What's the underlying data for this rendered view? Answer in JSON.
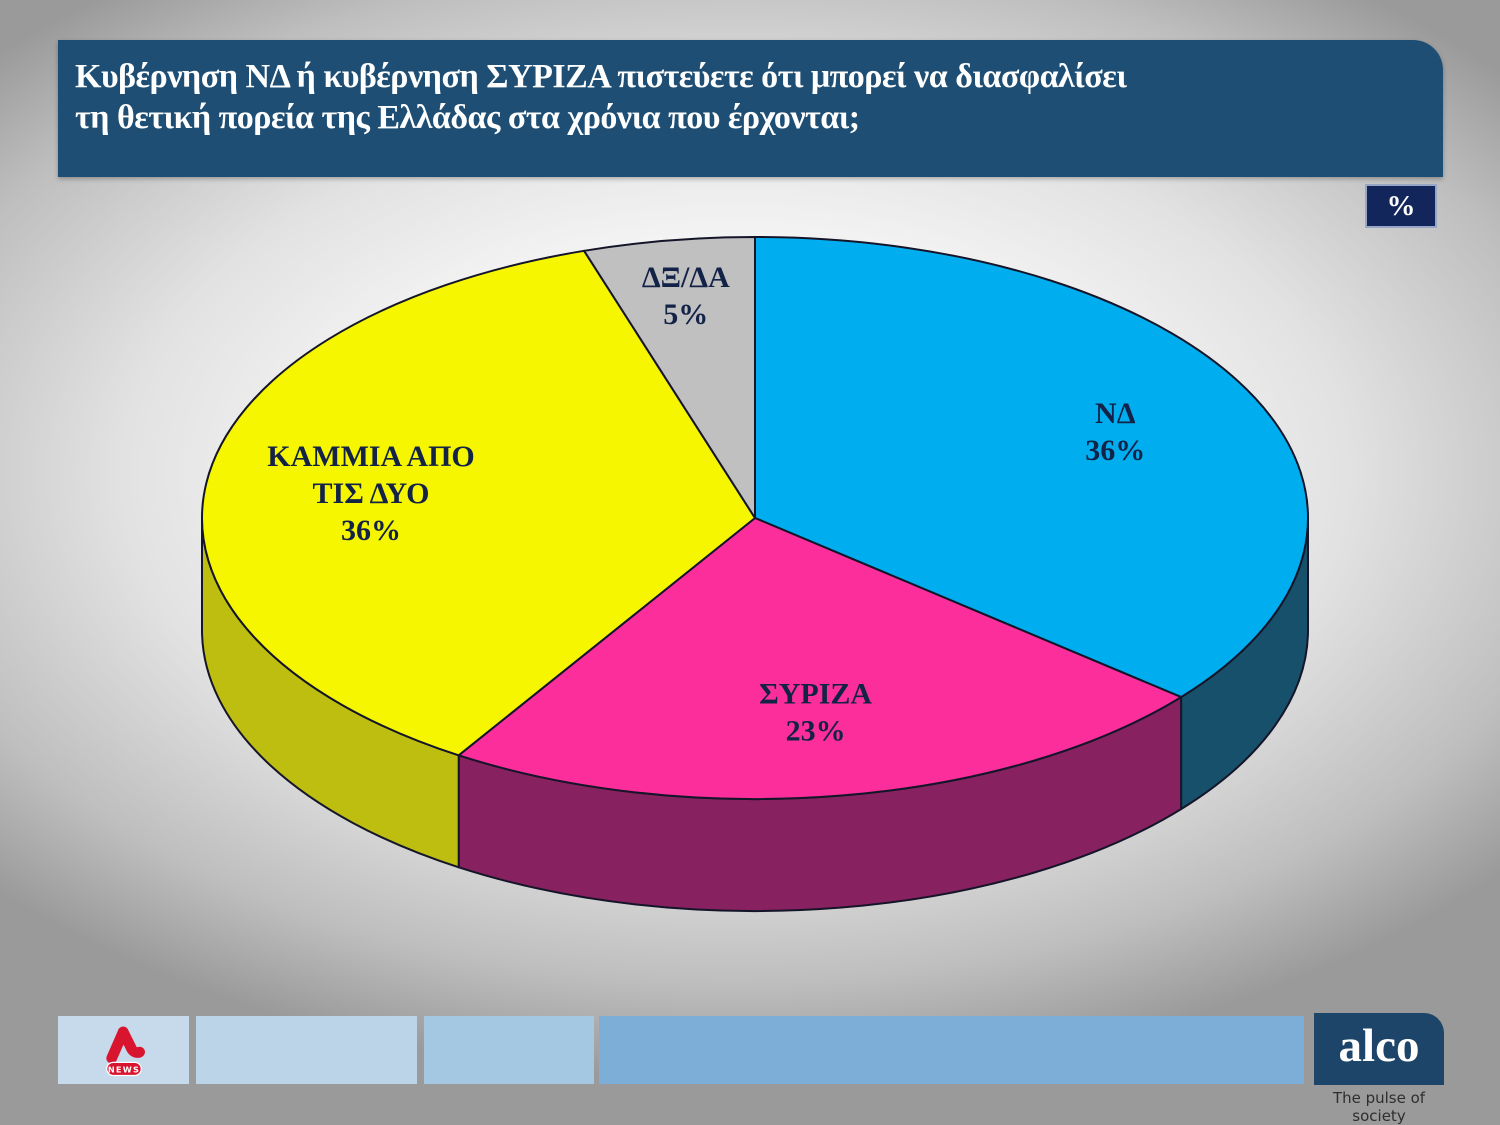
{
  "header": {
    "title_line1": "Κυβέρνηση ΝΔ ή κυβέρνηση ΣΥΡΙΖΑ πιστεύετε ότι μπορεί να διασφαλίσει",
    "title_line2": "τη θετική πορεία της Ελλάδας στα χρόνια που έρχονται;",
    "bg_color": "#1E4E74",
    "text_color": "#FFFFFF"
  },
  "unit_badge": {
    "label": "%",
    "bg_color": "#12265C"
  },
  "chart_data": {
    "type": "pie",
    "style": "3d",
    "unit": "%",
    "title": "",
    "start_angle_deg": 0,
    "direction": "clockwise",
    "legend": "none",
    "categories": [
      "ΝΔ",
      "ΣΥΡΙΖΑ",
      "ΚΑΜΜΙΑ ΑΠΟ ΤΙΣ ΔΥΟ",
      "ΔΞ/ΔΑ"
    ],
    "values": [
      36,
      23,
      36,
      5
    ],
    "slices": [
      {
        "label": "ΝΔ",
        "value": 36,
        "color": "#00AEEF",
        "side_color": "#17506B",
        "label_lines": [
          "ΝΔ",
          "36%"
        ],
        "label_r": 0.72
      },
      {
        "label": "ΣΥΡΙΖΑ",
        "value": 23,
        "color": "#FB2E9C",
        "side_color": "#87215F",
        "label_lines": [
          "ΣΥΡΙΖΑ",
          "23%"
        ],
        "label_r": 0.7
      },
      {
        "label": "ΚΑΜΜΙΑ ΑΠΟ ΤΙΣ ΔΥΟ",
        "value": 36,
        "color": "#F6F601",
        "side_color": "#BEBE11",
        "label_lines": [
          "ΚΑΜΜΙΑ ΑΠΟ",
          "ΤΙΣ ΔΥΟ",
          "36%"
        ],
        "label_r": 0.7
      },
      {
        "label": "ΔΞ/ΔΑ",
        "value": 5,
        "color": "#C0C0C0",
        "side_color": "#8F8F8F",
        "label_lines": [
          "ΔΞ/ΔΑ",
          "5%"
        ],
        "label_r": 0.8
      }
    ],
    "label_color": "#132247",
    "outline_color": "#15152A"
  },
  "footer": {
    "boxes": [
      {
        "name": "alpha-news-box",
        "color": "#C6DAEB"
      },
      {
        "name": "partner-box-2",
        "color": "#BCD4E8"
      },
      {
        "name": "partner-box-3",
        "color": "#A5C8E2"
      },
      {
        "name": "partner-box-4",
        "color": "#7DAED7"
      }
    ],
    "alpha_news": {
      "news_label": "NEWS",
      "brand_color": "#D8142E"
    },
    "alco": {
      "logo_text": "alco",
      "tagline": "The pulse of society",
      "bg_color": "#1D4569"
    }
  }
}
